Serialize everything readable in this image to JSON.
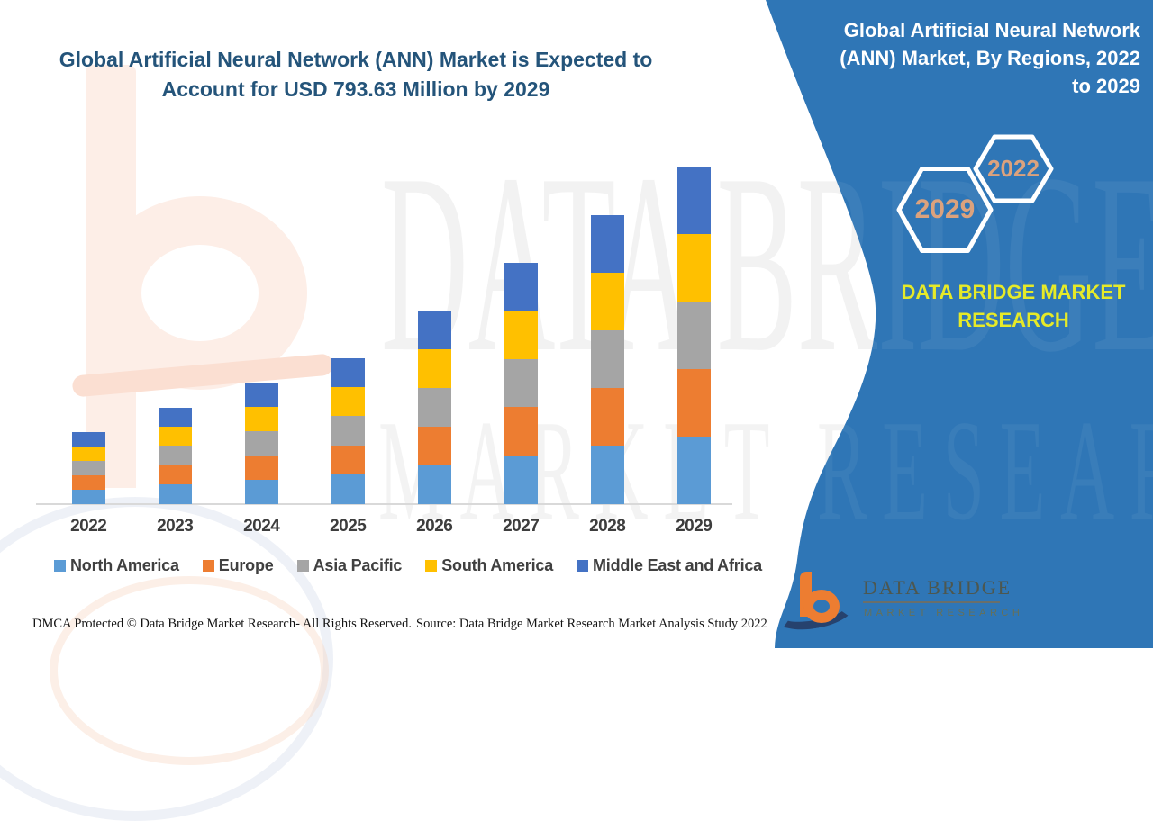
{
  "colors": {
    "panel_blue": "#2F76B6",
    "title_navy": "#24547A",
    "brand_yellow": "#E6EA28",
    "hex_number_tan": "#DCA27D",
    "axis_gray": "#D9D9D9"
  },
  "main_title": "Global Artificial Neural Network (ANN) Market is Expected to Account for USD 793.63 Million by 2029",
  "right_panel": {
    "heading": "Global Artificial Neural Network (ANN) Market, By Regions, 2022 to 2029",
    "hexagons": [
      {
        "label": "2022",
        "size": "small"
      },
      {
        "label": "2029",
        "size": "large"
      }
    ],
    "brand_caption": "DATA BRIDGE MARKET RESEARCH"
  },
  "logo": {
    "name": "DATA BRIDGE",
    "subtitle": "MARKET RESEARCH"
  },
  "watermark": {
    "row1": "DATA BRIDGE",
    "row2": "MARKET RESEARCH"
  },
  "footer": {
    "left": "DMCA Protected © Data Bridge Market Research- All Rights Reserved.",
    "right": "Source: Data Bridge Market Research Market Analysis Study 2022"
  },
  "chart_data": {
    "type": "bar",
    "stacked": true,
    "title": "Global Artificial Neural Network (ANN) Market, By Regions, 2022 to 2029",
    "unit": "USD Million",
    "categories": [
      "2022",
      "2023",
      "2024",
      "2025",
      "2026",
      "2027",
      "2028",
      "2029"
    ],
    "series": [
      {
        "name": "North America",
        "color": "#5B9BD5",
        "values": [
          33.86,
          45.28,
          56.72,
          68.58,
          91.0,
          113.44,
          135.88,
          158.73
        ]
      },
      {
        "name": "Europe",
        "color": "#ED7D31",
        "values": [
          33.86,
          45.28,
          56.72,
          68.58,
          91.0,
          113.44,
          135.88,
          158.73
        ]
      },
      {
        "name": "Asia Pacific",
        "color": "#A5A5A5",
        "values": [
          33.86,
          45.28,
          56.72,
          68.58,
          91.0,
          113.44,
          135.88,
          158.73
        ]
      },
      {
        "name": "South America",
        "color": "#FFC000",
        "values": [
          33.86,
          45.28,
          56.72,
          68.58,
          91.0,
          113.44,
          135.88,
          158.73
        ]
      },
      {
        "name": "Middle East and Africa",
        "color": "#4472C4",
        "values": [
          33.86,
          45.28,
          56.72,
          68.58,
          91.0,
          113.44,
          135.88,
          158.73
        ]
      }
    ],
    "totals": [
      169.3,
      226.4,
      283.6,
      342.9,
      455.0,
      567.2,
      679.4,
      793.63
    ],
    "annotation": "2029 total stated as USD 793.63 Million; regional split shown visually equal, values estimated from bar heights",
    "axis": {
      "x_visible": true,
      "y_visible": false,
      "gridlines": false,
      "y_implied_range": [
        0,
        800
      ]
    },
    "legend_position": "bottom"
  }
}
